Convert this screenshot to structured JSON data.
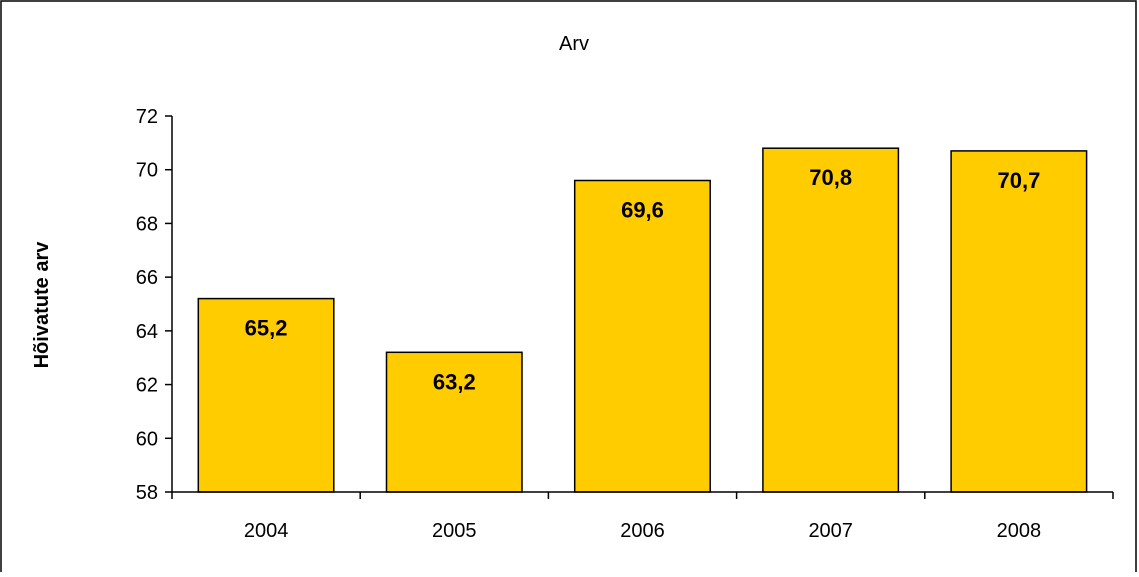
{
  "chart_data": {
    "type": "bar",
    "title": "Arv",
    "xlabel": "",
    "ylabel": "Hõivatute arv",
    "categories": [
      "2004",
      "2005",
      "2006",
      "2007",
      "2008"
    ],
    "values": [
      65.2,
      63.2,
      69.6,
      70.8,
      70.7
    ],
    "value_labels": [
      "65,2",
      "63,2",
      "69,6",
      "70,8",
      "70,7"
    ],
    "ylim": [
      58,
      72
    ],
    "yticks": [
      58,
      60,
      62,
      64,
      66,
      68,
      70,
      72
    ],
    "grid": false,
    "legend": "none",
    "colors": {
      "bar_fill": "#FFCC00",
      "bar_stroke": "#000000",
      "axis": "#000000",
      "frame": "#000000"
    }
  }
}
